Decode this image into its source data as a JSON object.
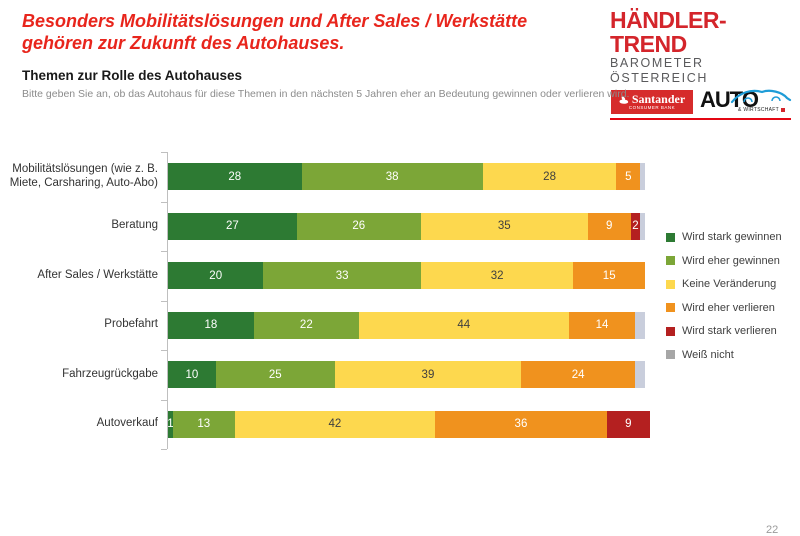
{
  "header": {
    "title_line1": "Besonders Mobilitätslösungen und After Sales / Werkstätte",
    "title_line2": "gehören zur Zukunft des Autohauses.",
    "subtitle": "Themen zur Rolle des Autohauses",
    "question": "Bitte geben Sie an, ob das Autohaus für diese Themen in den nächsten 5 Jahren eher an Bedeutung gewinnen oder verlieren wird."
  },
  "branding": {
    "brand_title": "HÄNDLER-TREND",
    "brand_subtitle": "BAROMETER ÖSTERREICH",
    "santander_label": "Santander",
    "santander_sublabel": "CONSUMER BANK",
    "auto_label": "AUTO",
    "auto_sublabel": "& WIRTSCHAFT",
    "brand_red": "#D4252B",
    "santander_red": "#D62B2B",
    "car_blue": "#1E9CD7"
  },
  "page_number": "22",
  "chart_data": {
    "type": "bar",
    "stacked": true,
    "orientation": "horizontal",
    "title": "Themen zur Rolle des Autohauses",
    "xlabel": "",
    "ylabel": "",
    "xlim": [
      0,
      100
    ],
    "grid": false,
    "legend_position": "right",
    "categories": [
      "Mobilitätslösungen (wie z. B. Miete, Carsharing, Auto-Abo)",
      "Beratung",
      "After Sales / Werkstätte",
      "Probefahrt",
      "Fahrzeugrückgabe",
      "Autoverkauf"
    ],
    "series": [
      {
        "name": "Wird stark gewinnen",
        "color": "#2D7A33",
        "label_color": "#ffffff",
        "values": [
          28,
          27,
          20,
          18,
          10,
          1
        ]
      },
      {
        "name": "Wird eher gewinnen",
        "color": "#7CA637",
        "label_color": "#ffffff",
        "values": [
          38,
          26,
          33,
          22,
          25,
          13
        ]
      },
      {
        "name": "Keine Veränderung",
        "color": "#FDD84E",
        "label_color": "#3F3F3F",
        "values": [
          28,
          35,
          32,
          44,
          39,
          42
        ]
      },
      {
        "name": "Wird eher verlieren",
        "color": "#F0921E",
        "label_color": "#ffffff",
        "values": [
          5,
          9,
          15,
          14,
          24,
          36
        ]
      },
      {
        "name": "Wird stark verlieren",
        "color": "#B42020",
        "label_color": "#ffffff",
        "values": [
          0,
          2,
          0,
          0,
          0,
          9
        ]
      },
      {
        "name": "Weiß nicht",
        "color": "#C9CEDC",
        "legend_color": "#A6A6A6",
        "label_color": "#3F3F3F",
        "show_value_labels": false,
        "values": [
          1,
          1,
          0,
          2,
          2,
          0
        ]
      }
    ]
  }
}
